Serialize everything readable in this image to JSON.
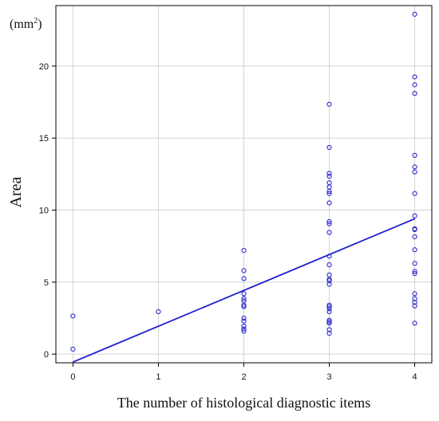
{
  "chart_data": {
    "type": "scatter",
    "title": "",
    "xlabel": "The number of histological diagnostic items",
    "ylabel": "Area",
    "unit_label": "(mm",
    "unit_sup": "2",
    "unit_close": ")",
    "xlim": [
      -0.2,
      4.2
    ],
    "ylim": [
      -0.6,
      24.2
    ],
    "x_ticks": [
      0,
      1,
      2,
      3,
      4
    ],
    "y_ticks": [
      0,
      5,
      10,
      15,
      20
    ],
    "grid": true,
    "colors": {
      "points": "#1f1fd1",
      "line": "#1f1fd1",
      "grid": "#d3d3d3",
      "axis": "#000000"
    },
    "series": [
      {
        "type": "scatter",
        "points": [
          [
            0,
            2.65
          ],
          [
            0,
            0.35
          ],
          [
            1,
            2.95
          ],
          [
            2,
            7.2
          ],
          [
            2,
            5.8
          ],
          [
            2,
            5.25
          ],
          [
            2,
            4.2
          ],
          [
            2,
            3.85
          ],
          [
            2,
            3.7
          ],
          [
            2,
            3.4
          ],
          [
            2,
            3.3
          ],
          [
            2,
            2.5
          ],
          [
            2,
            2.3
          ],
          [
            2,
            1.95
          ],
          [
            2,
            1.75
          ],
          [
            2,
            1.6
          ],
          [
            3,
            17.35
          ],
          [
            3,
            14.35
          ],
          [
            3,
            12.55
          ],
          [
            3,
            12.35
          ],
          [
            3,
            11.9
          ],
          [
            3,
            11.6
          ],
          [
            3,
            11.3
          ],
          [
            3,
            11.15
          ],
          [
            3,
            10.5
          ],
          [
            3,
            9.2
          ],
          [
            3,
            9.05
          ],
          [
            3,
            8.45
          ],
          [
            3,
            6.8
          ],
          [
            3,
            6.2
          ],
          [
            3,
            5.5
          ],
          [
            3,
            5.2
          ],
          [
            3,
            5.1
          ],
          [
            3,
            4.85
          ],
          [
            3,
            3.4
          ],
          [
            3,
            3.3
          ],
          [
            3,
            3.15
          ],
          [
            3,
            2.95
          ],
          [
            3,
            2.35
          ],
          [
            3,
            2.25
          ],
          [
            3,
            2.15
          ],
          [
            3,
            1.7
          ],
          [
            3,
            1.45
          ],
          [
            4,
            23.6
          ],
          [
            4,
            19.25
          ],
          [
            4,
            18.7
          ],
          [
            4,
            18.1
          ],
          [
            4,
            13.8
          ],
          [
            4,
            13.0
          ],
          [
            4,
            12.65
          ],
          [
            4,
            11.15
          ],
          [
            4,
            9.6
          ],
          [
            4,
            8.7
          ],
          [
            4,
            8.65
          ],
          [
            4,
            8.15
          ],
          [
            4,
            7.25
          ],
          [
            4,
            6.3
          ],
          [
            4,
            5.75
          ],
          [
            4,
            5.6
          ],
          [
            4,
            4.2
          ],
          [
            4,
            3.85
          ],
          [
            4,
            3.6
          ],
          [
            4,
            3.35
          ],
          [
            4,
            2.15
          ]
        ]
      },
      {
        "type": "line",
        "points": [
          [
            0,
            -0.55
          ],
          [
            4,
            9.4
          ]
        ]
      }
    ]
  }
}
